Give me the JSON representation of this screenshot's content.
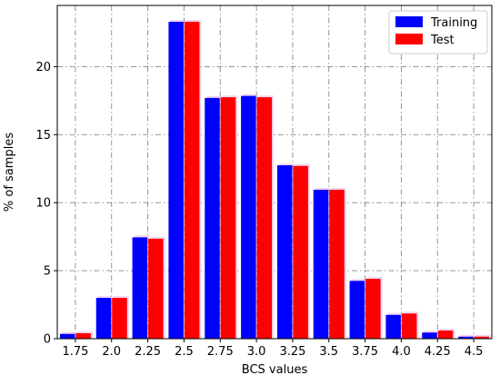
{
  "chart_data": {
    "type": "bar",
    "title": "",
    "xlabel": "BCS values",
    "ylabel": "% of samples",
    "categories": [
      "1.75",
      "2.0",
      "2.25",
      "2.5",
      "2.75",
      "3.0",
      "3.25",
      "3.5",
      "3.75",
      "4.0",
      "4.25",
      "4.5"
    ],
    "ylim": [
      0,
      24.5
    ],
    "yticks": [
      "0",
      "5",
      "10",
      "15",
      "20"
    ],
    "grid": true,
    "legend_position": "top-right",
    "series": [
      {
        "name": "Training",
        "color": "#0000ff",
        "values": [
          0.35,
          3.0,
          7.45,
          23.3,
          17.7,
          17.85,
          12.75,
          10.95,
          4.25,
          1.75,
          0.45,
          0.15
        ]
      },
      {
        "name": "Test",
        "color": "#ff0000",
        "values": [
          0.4,
          3.0,
          7.35,
          23.3,
          17.75,
          17.75,
          12.7,
          10.95,
          4.4,
          1.85,
          0.6,
          0.15
        ]
      }
    ]
  }
}
